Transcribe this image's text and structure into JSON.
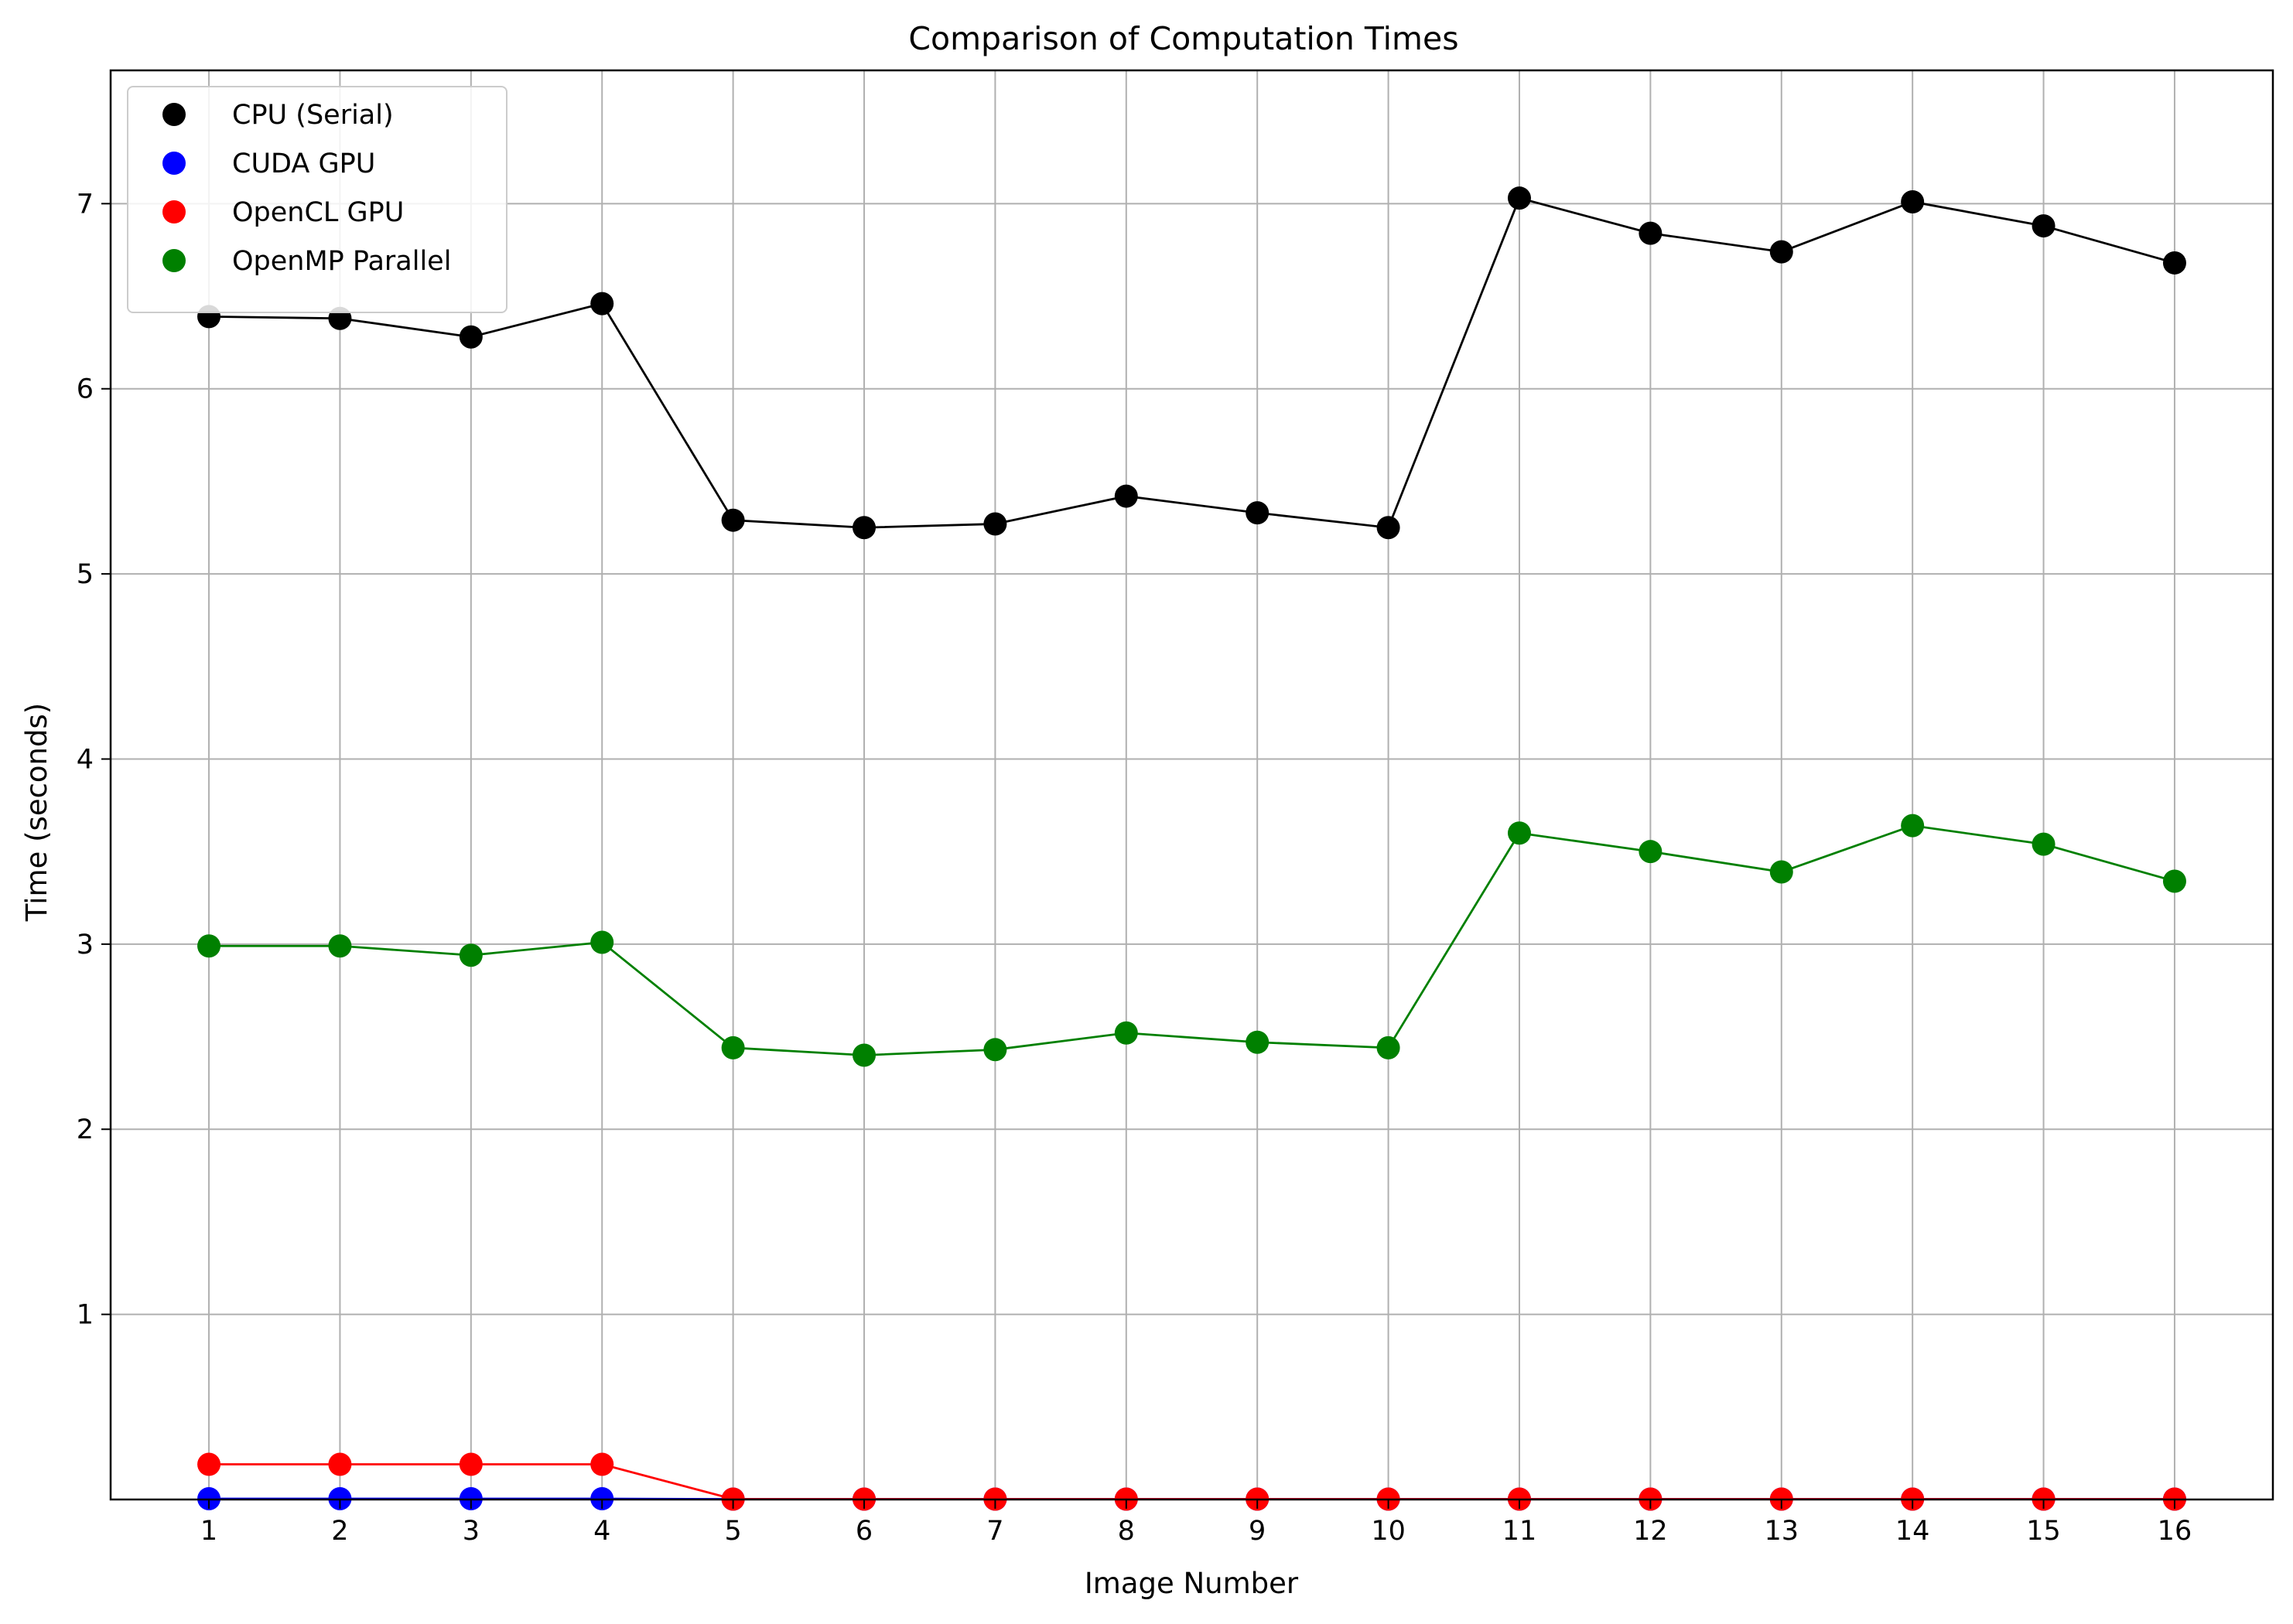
{
  "chart_data": {
    "type": "line",
    "title": "Comparison of Computation Times",
    "xlabel": "Image Number",
    "ylabel": "Time (seconds)",
    "x": [
      1,
      2,
      3,
      4,
      5,
      6,
      7,
      8,
      9,
      10,
      11,
      12,
      13,
      14,
      15,
      16
    ],
    "x_ticks": [
      "1",
      "2",
      "3",
      "4",
      "5",
      "6",
      "7",
      "8",
      "9",
      "10",
      "11",
      "12",
      "13",
      "14",
      "15",
      "16"
    ],
    "y_ticks": [
      "1",
      "2",
      "3",
      "4",
      "5",
      "6",
      "7"
    ],
    "xlim": [
      0.25,
      16.75
    ],
    "ylim": [
      0.0,
      7.72
    ],
    "grid": true,
    "markers": "filled circles",
    "legend": "upper-left",
    "series": [
      {
        "name": "CPU (Serial)",
        "color": "#000000",
        "values": [
          6.39,
          6.38,
          6.28,
          6.46,
          5.29,
          5.25,
          5.27,
          5.42,
          5.33,
          5.25,
          7.03,
          6.84,
          6.74,
          7.01,
          6.88,
          6.68
        ]
      },
      {
        "name": "CUDA GPU",
        "color": "#0000ff",
        "values": [
          0.004,
          0.004,
          0.004,
          0.004,
          0.002,
          0.002,
          0.002,
          0.002,
          0.002,
          0.002,
          0.002,
          0.002,
          0.002,
          0.002,
          0.002,
          0.002
        ]
      },
      {
        "name": "OpenCL GPU",
        "color": "#ff0000",
        "values": [
          0.19,
          0.19,
          0.19,
          0.19,
          0.002,
          0.002,
          0.002,
          0.002,
          0.002,
          0.002,
          0.002,
          0.002,
          0.002,
          0.002,
          0.002,
          0.002
        ]
      },
      {
        "name": "OpenMP Parallel",
        "color": "#008000",
        "values": [
          2.99,
          2.99,
          2.94,
          3.01,
          2.44,
          2.4,
          2.43,
          2.52,
          2.47,
          2.44,
          3.6,
          3.5,
          3.39,
          3.64,
          3.54,
          3.34
        ]
      }
    ]
  }
}
